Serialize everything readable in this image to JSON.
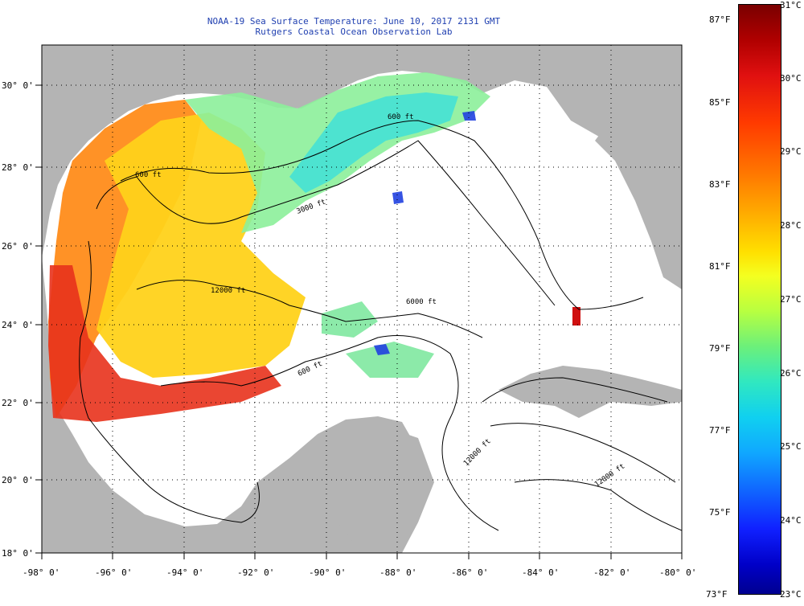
{
  "title": {
    "line1": "NOAA-19 Sea Surface Temperature:  June 10, 2017 2131 GMT",
    "line2": "Rutgers Coastal Ocean Observation Lab"
  },
  "axes": {
    "lon_labels": [
      "-98° 0'",
      "-96° 0'",
      "-94° 0'",
      "-92° 0'",
      "-90° 0'",
      "-88° 0'",
      "-86° 0'",
      "-84° 0'",
      "-82° 0'",
      "-80° 0'"
    ],
    "lat_labels": [
      "30° 0'",
      "28° 0'",
      "26° 0'",
      "24° 0'",
      "22° 0'",
      "20° 0'",
      "18° 0'"
    ]
  },
  "contour_labels": [
    "600 ft",
    "600 ft",
    "3000 ft",
    "12000 ft",
    "6000 ft",
    "600 ft",
    "12000 ft",
    "12000 ft"
  ],
  "colorbar": {
    "fahrenheit": [
      "87°F",
      "85°F",
      "83°F",
      "81°F",
      "79°F",
      "77°F",
      "75°F",
      "73°F"
    ],
    "celsius": [
      "31°C",
      "30°C",
      "29°C",
      "28°C",
      "27°C",
      "26°C",
      "25°C",
      "24°C",
      "23°C"
    ]
  },
  "colors": {
    "land": "#b4b4b4",
    "ocean_nodata": "#ffffff",
    "title_text": "#1f3fb0"
  }
}
